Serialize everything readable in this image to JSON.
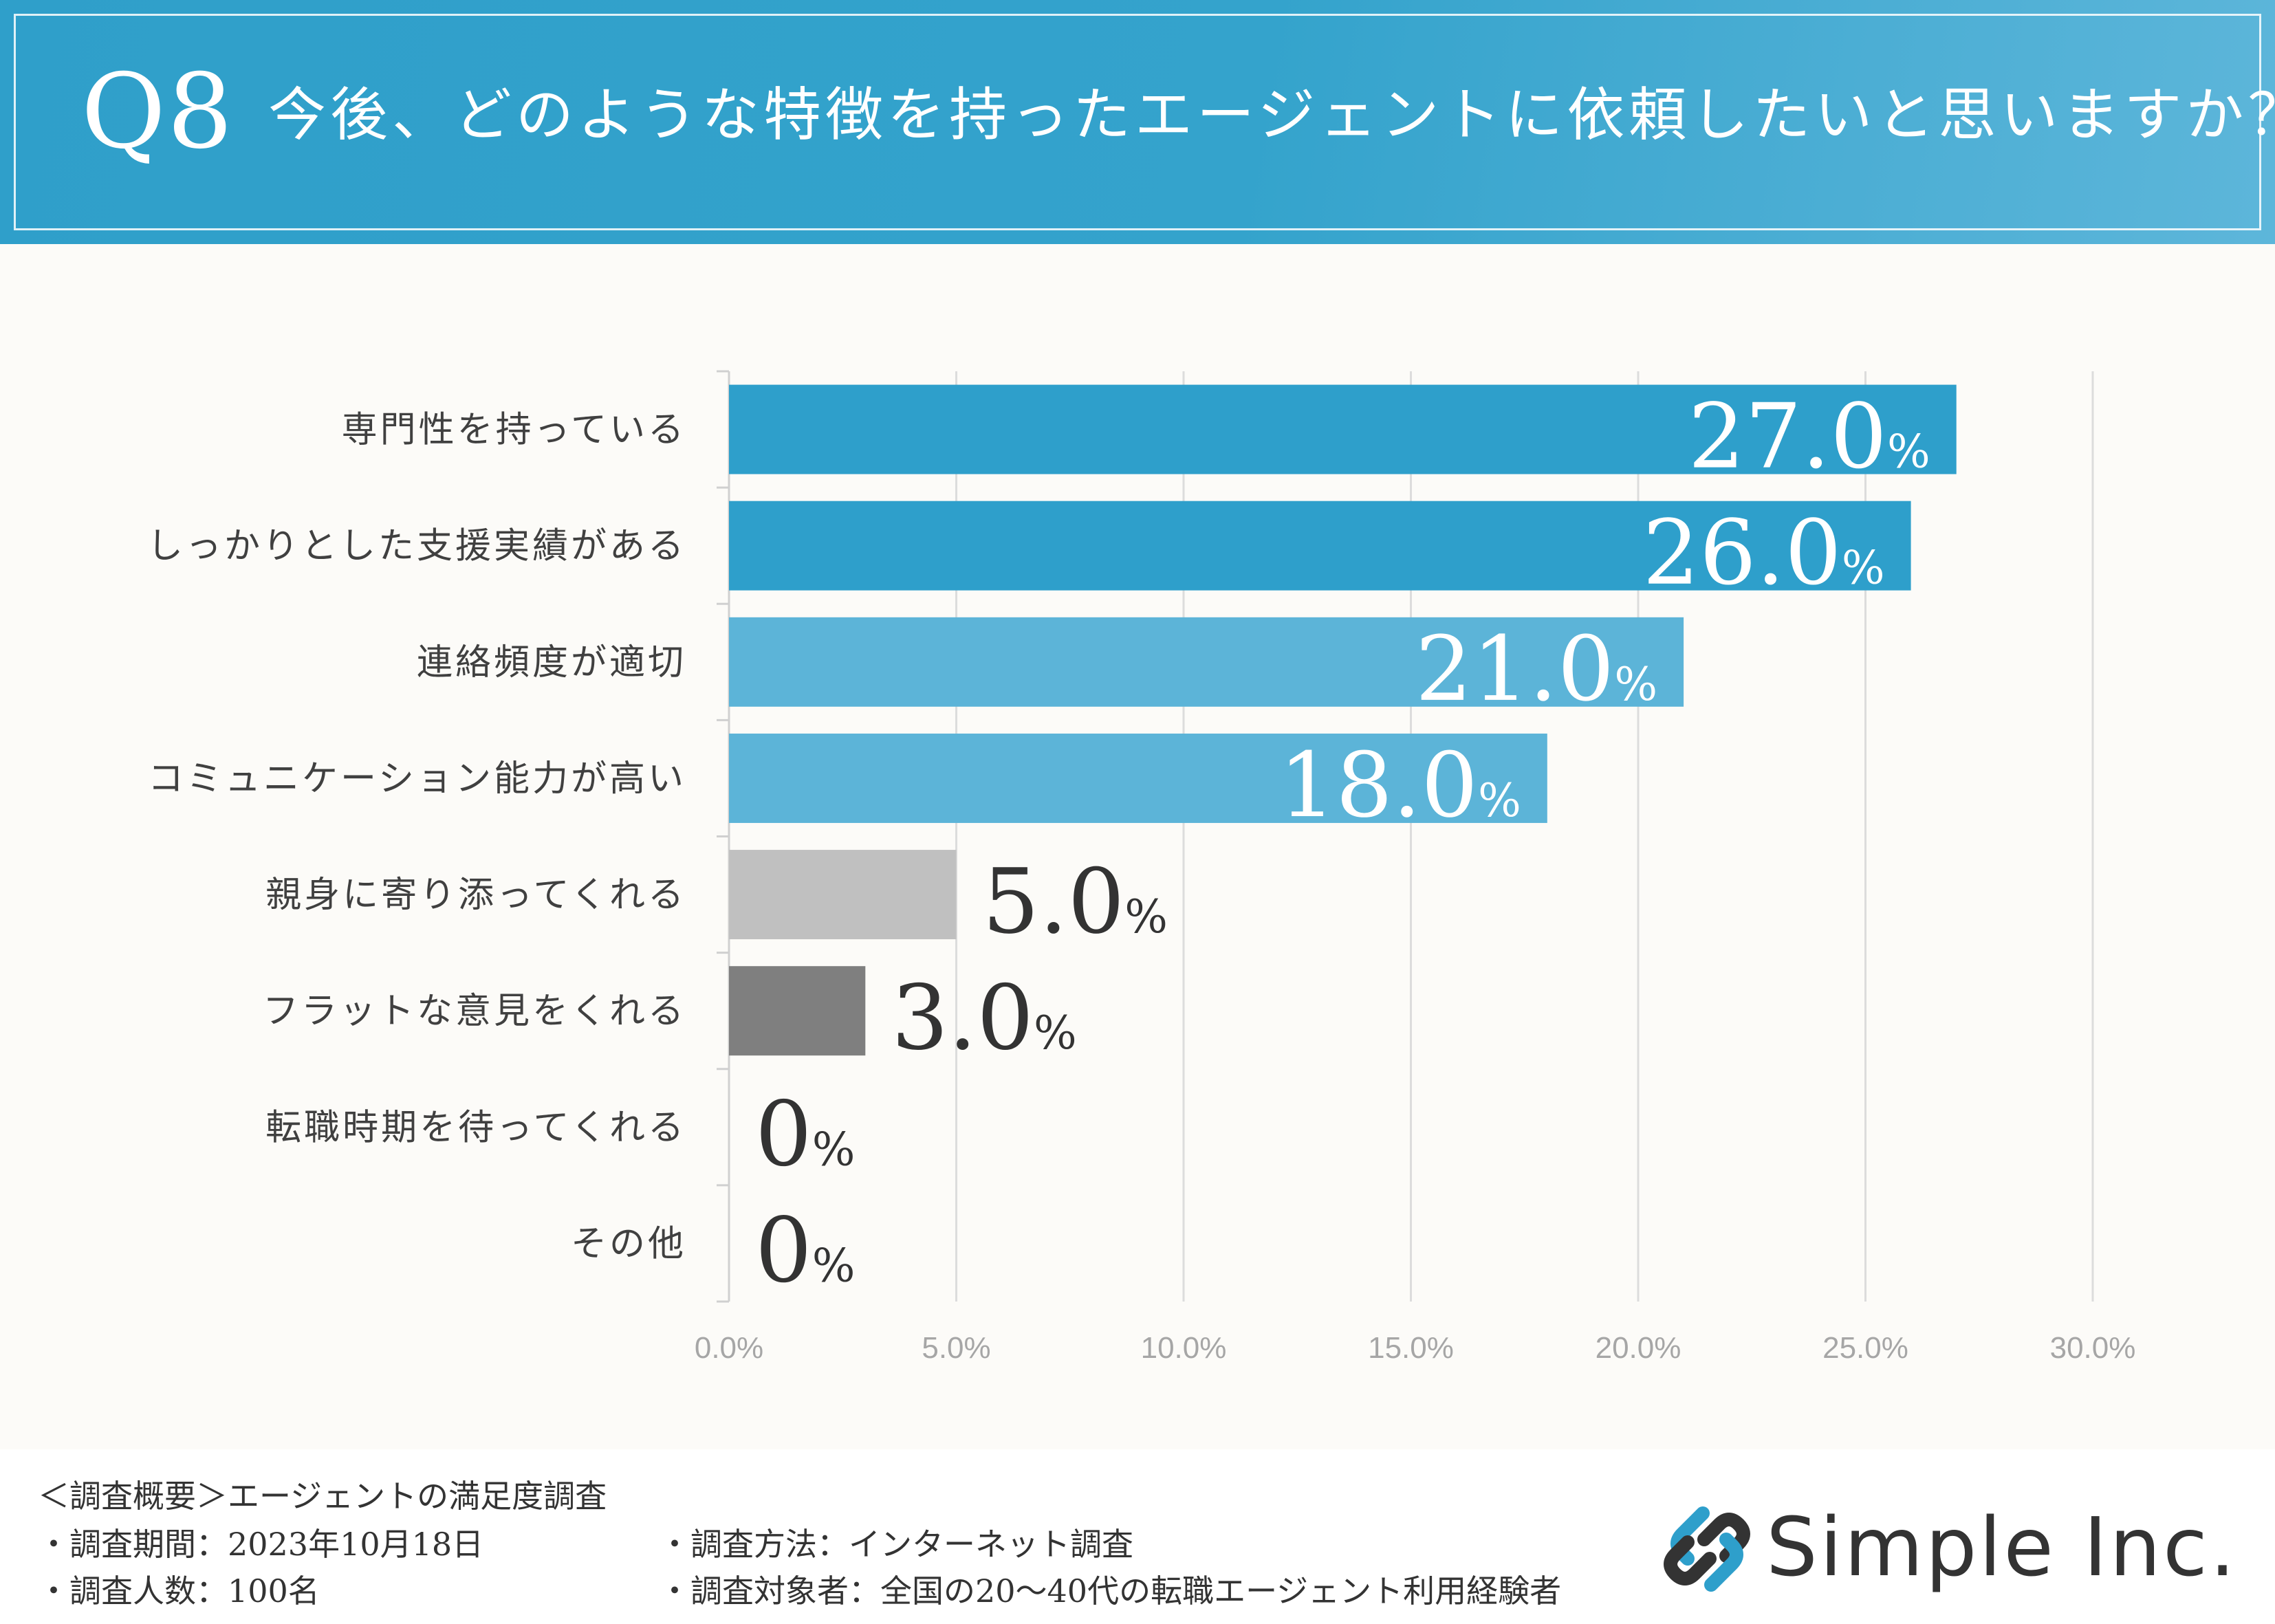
{
  "header": {
    "question_number": "Q8",
    "question_text": "今後、どのような特徴を持ったエージェントに依頼したいと思いますか？"
  },
  "chart_data": {
    "type": "bar",
    "orientation": "horizontal",
    "categories": [
      "専門性を持っている",
      "しっかりとした支援実績がある",
      "連絡頻度が適切",
      "コミュニケーション能力が高い",
      "親身に寄り添ってくれる",
      "フラットな意見をくれる",
      "転職時期を待ってくれる",
      "その他"
    ],
    "values": [
      27.0,
      26.0,
      21.0,
      18.0,
      5.0,
      3.0,
      0,
      0
    ],
    "value_labels": [
      "27.0",
      "26.0",
      "21.0",
      "18.0",
      "5.0",
      "3.0",
      "0",
      "0"
    ],
    "value_unit": "%",
    "bar_colors": [
      "#2e9fcb",
      "#2e9fcb",
      "#5cb4d8",
      "#5cb4d8",
      "#c0c0c0",
      "#7f7f7f",
      "#7f7f7f",
      "#7f7f7f"
    ],
    "label_inside": [
      true,
      true,
      true,
      true,
      false,
      false,
      false,
      false
    ],
    "x_ticks": [
      "0.0%",
      "5.0%",
      "10.0%",
      "15.0%",
      "20.0%",
      "25.0%",
      "30.0%"
    ],
    "xlim": [
      0,
      30
    ],
    "grid": true,
    "legend": "none"
  },
  "footer": {
    "survey_title": "＜調査概要＞エージェントの満足度調査",
    "period": "・調査期間：2023年10月18日",
    "respondents": "・調査人数：100名",
    "method": "・調査方法：インターネット調査",
    "target": "・調査対象者：全国の20～40代の転職エージェント利用経験者"
  },
  "logo": {
    "text": "Simple Inc.",
    "icon": "link-chain-logo-icon",
    "colors": [
      "#2e9fcb",
      "#333333"
    ]
  }
}
